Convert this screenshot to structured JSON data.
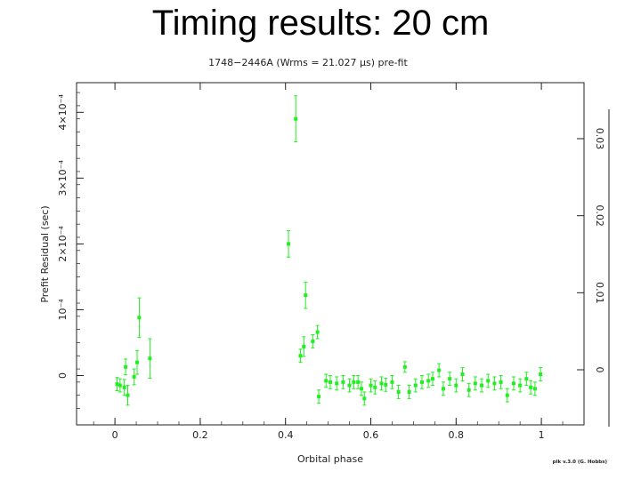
{
  "slide": {
    "title": "Timing results: 20 cm"
  },
  "chart_data": {
    "type": "scatter",
    "title": "1748−2446A (Wrms = 21.027 μs) pre-fit",
    "xlabel": "Orbital phase",
    "ylabel": "Prefit Residual (sec)",
    "credit": "plk v.3.0 (G. Hobbs)",
    "xlim": [
      -0.09,
      1.1
    ],
    "ylim": [
      -7.5e-05,
      0.000445
    ],
    "grid": false,
    "legend": "none",
    "point_color": "#22ee22",
    "x_ticks": [
      {
        "value": 0,
        "label": "0"
      },
      {
        "value": 0.2,
        "label": "0.2"
      },
      {
        "value": 0.4,
        "label": "0.4"
      },
      {
        "value": 0.6,
        "label": "0.6"
      },
      {
        "value": 0.8,
        "label": "0.8"
      },
      {
        "value": 1,
        "label": "1"
      }
    ],
    "y_ticks": [
      {
        "value": 0,
        "label": "0"
      },
      {
        "value": 0.0001,
        "label": "10⁻⁴"
      },
      {
        "value": 0.0002,
        "label": "2×10⁻⁴"
      },
      {
        "value": 0.0003,
        "label": "3×10⁻⁴"
      },
      {
        "value": 0.0004,
        "label": "4×10⁻⁴"
      }
    ],
    "right_ticks": [
      {
        "value": 0,
        "label": "0"
      },
      {
        "value": 0.0001,
        "label": "0.01"
      },
      {
        "value": 0.0002,
        "label": "0.02"
      },
      {
        "value": 0.0003,
        "label": "0.03"
      }
    ],
    "points": [
      {
        "x": 0.005,
        "y": -1.3e-05,
        "err": 1e-05
      },
      {
        "x": 0.012,
        "y": -1.5e-05,
        "err": 1e-05
      },
      {
        "x": 0.022,
        "y": -1.8e-05,
        "err": 1.2e-05
      },
      {
        "x": 0.025,
        "y": 1.3e-05,
        "err": 1.2e-05
      },
      {
        "x": 0.03,
        "y": -3e-05,
        "err": 1.5e-05
      },
      {
        "x": 0.045,
        "y": -2e-06,
        "err": 1.2e-05
      },
      {
        "x": 0.052,
        "y": 2e-05,
        "err": 1.8e-05
      },
      {
        "x": 0.057,
        "y": 8.8e-05,
        "err": 3e-05
      },
      {
        "x": 0.082,
        "y": 2.6e-05,
        "err": 3e-05
      },
      {
        "x": 0.407,
        "y": 0.0002,
        "err": 2e-05
      },
      {
        "x": 0.424,
        "y": 0.00039,
        "err": 3.5e-05
      },
      {
        "x": 0.435,
        "y": 3e-05,
        "err": 1e-05
      },
      {
        "x": 0.443,
        "y": 4.4e-05,
        "err": 1.5e-05
      },
      {
        "x": 0.447,
        "y": 0.000122,
        "err": 2e-05
      },
      {
        "x": 0.464,
        "y": 5.2e-05,
        "err": 1e-05
      },
      {
        "x": 0.475,
        "y": 6.6e-05,
        "err": 1e-05
      },
      {
        "x": 0.478,
        "y": -3.2e-05,
        "err": 1e-05
      },
      {
        "x": 0.495,
        "y": -8e-06,
        "err": 1e-05
      },
      {
        "x": 0.505,
        "y": -1e-05,
        "err": 1e-05
      },
      {
        "x": 0.52,
        "y": -1.2e-05,
        "err": 1e-05
      },
      {
        "x": 0.535,
        "y": -1e-05,
        "err": 1e-05
      },
      {
        "x": 0.55,
        "y": -1.5e-05,
        "err": 1e-05
      },
      {
        "x": 0.56,
        "y": -1e-05,
        "err": 1e-05
      },
      {
        "x": 0.57,
        "y": -1e-05,
        "err": 1e-05
      },
      {
        "x": 0.578,
        "y": -2e-05,
        "err": 1e-05
      },
      {
        "x": 0.585,
        "y": -3.5e-05,
        "err": 1e-05
      },
      {
        "x": 0.6,
        "y": -1.5e-05,
        "err": 1e-05
      },
      {
        "x": 0.61,
        "y": -1.8e-05,
        "err": 1e-05
      },
      {
        "x": 0.625,
        "y": -1.2e-05,
        "err": 1e-05
      },
      {
        "x": 0.635,
        "y": -1.4e-05,
        "err": 1e-05
      },
      {
        "x": 0.65,
        "y": -1e-05,
        "err": 1e-05
      },
      {
        "x": 0.665,
        "y": -2.5e-05,
        "err": 1e-05
      },
      {
        "x": 0.68,
        "y": 1.3e-05,
        "err": 8e-06
      },
      {
        "x": 0.69,
        "y": -2.5e-05,
        "err": 1e-05
      },
      {
        "x": 0.705,
        "y": -1.5e-05,
        "err": 1e-05
      },
      {
        "x": 0.72,
        "y": -1e-05,
        "err": 1e-05
      },
      {
        "x": 0.735,
        "y": -8e-06,
        "err": 1e-05
      },
      {
        "x": 0.745,
        "y": -5e-06,
        "err": 1e-05
      },
      {
        "x": 0.76,
        "y": 8e-06,
        "err": 1e-05
      },
      {
        "x": 0.77,
        "y": -2e-05,
        "err": 1e-05
      },
      {
        "x": 0.785,
        "y": -5e-06,
        "err": 1e-05
      },
      {
        "x": 0.8,
        "y": -1.5e-05,
        "err": 1e-05
      },
      {
        "x": 0.815,
        "y": 2e-06,
        "err": 1e-05
      },
      {
        "x": 0.83,
        "y": -2.2e-05,
        "err": 1e-05
      },
      {
        "x": 0.845,
        "y": -1.2e-05,
        "err": 1e-05
      },
      {
        "x": 0.86,
        "y": -1.5e-05,
        "err": 1e-05
      },
      {
        "x": 0.875,
        "y": -8e-06,
        "err": 1e-05
      },
      {
        "x": 0.89,
        "y": -1.2e-05,
        "err": 1e-05
      },
      {
        "x": 0.905,
        "y": -1e-05,
        "err": 1e-05
      },
      {
        "x": 0.92,
        "y": -3e-05,
        "err": 1e-05
      },
      {
        "x": 0.935,
        "y": -1.2e-05,
        "err": 1e-05
      },
      {
        "x": 0.95,
        "y": -1.5e-05,
        "err": 1e-05
      },
      {
        "x": 0.965,
        "y": -5e-06,
        "err": 1e-05
      },
      {
        "x": 0.975,
        "y": -1.8e-05,
        "err": 1e-05
      },
      {
        "x": 0.985,
        "y": -2e-05,
        "err": 1e-05
      },
      {
        "x": 0.998,
        "y": 2e-06,
        "err": 1e-05
      }
    ]
  }
}
